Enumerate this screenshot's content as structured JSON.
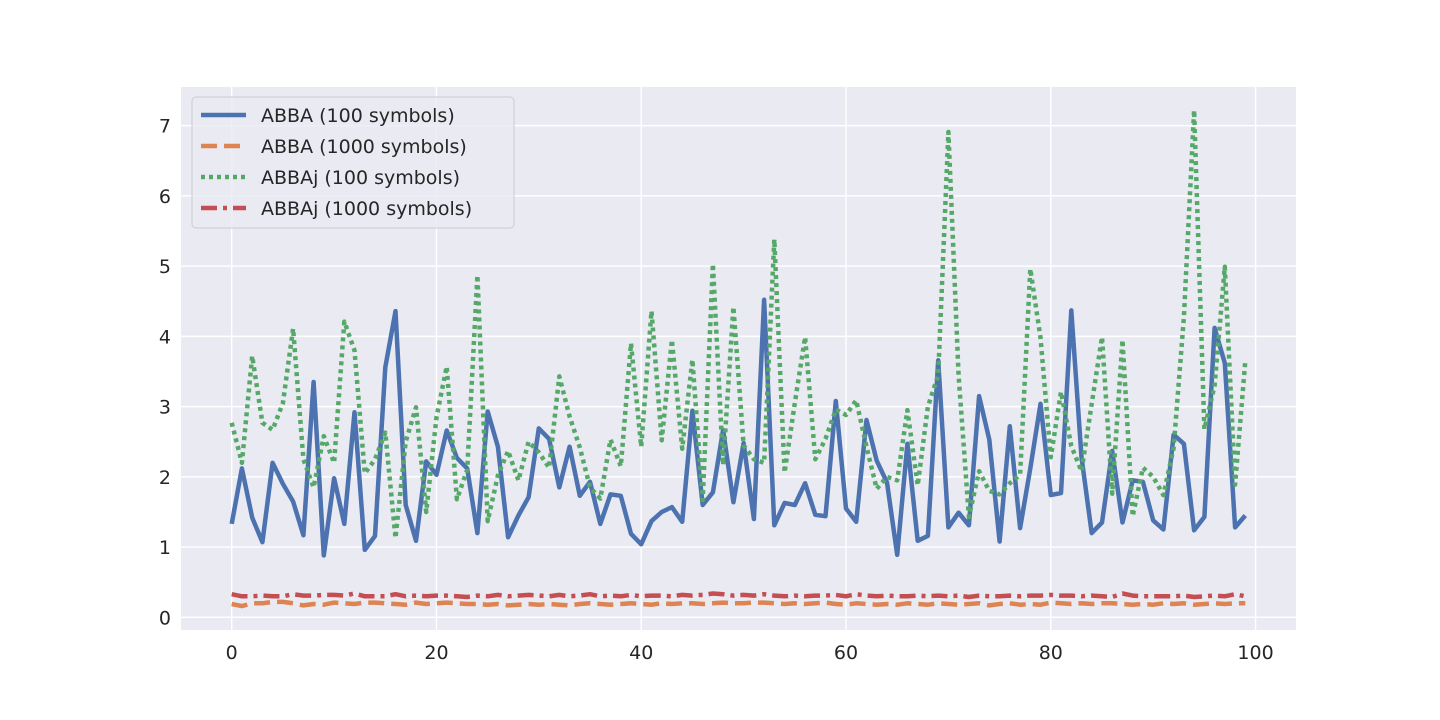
{
  "chart_data": {
    "type": "line",
    "title": "",
    "xlabel": "",
    "ylabel": "",
    "xlim": [
      -4.95,
      103.95
    ],
    "ylim": [
      -0.18,
      7.55
    ],
    "xticks": [
      0,
      20,
      40,
      60,
      80,
      100
    ],
    "yticks": [
      0,
      1,
      2,
      3,
      4,
      5,
      6,
      7
    ],
    "grid": true,
    "legend_position": "upper-left",
    "x": [
      0,
      1,
      2,
      3,
      4,
      5,
      6,
      7,
      8,
      9,
      10,
      11,
      12,
      13,
      14,
      15,
      16,
      17,
      18,
      19,
      20,
      21,
      22,
      23,
      24,
      25,
      26,
      27,
      28,
      29,
      30,
      31,
      32,
      33,
      34,
      35,
      36,
      37,
      38,
      39,
      40,
      41,
      42,
      43,
      44,
      45,
      46,
      47,
      48,
      49,
      50,
      51,
      52,
      53,
      54,
      55,
      56,
      57,
      58,
      59,
      60,
      61,
      62,
      63,
      64,
      65,
      66,
      67,
      68,
      69,
      70,
      71,
      72,
      73,
      74,
      75,
      76,
      77,
      78,
      79,
      80,
      81,
      82,
      83,
      84,
      85,
      86,
      87,
      88,
      89,
      90,
      91,
      92,
      93,
      94,
      95,
      96,
      97,
      98,
      99
    ],
    "series": [
      {
        "name": "ABBA (100 symbols)",
        "color": "#4c72b0",
        "dash": "solid",
        "values": [
          1.33,
          2.12,
          1.42,
          1.07,
          2.2,
          1.9,
          1.65,
          1.17,
          3.35,
          0.88,
          1.98,
          1.33,
          2.92,
          0.96,
          1.16,
          3.56,
          4.36,
          1.6,
          1.09,
          2.22,
          2.03,
          2.66,
          2.27,
          2.12,
          1.2,
          2.93,
          2.43,
          1.14,
          1.45,
          1.71,
          2.69,
          2.54,
          1.85,
          2.43,
          1.73,
          1.93,
          1.33,
          1.75,
          1.73,
          1.19,
          1.04,
          1.37,
          1.5,
          1.57,
          1.36,
          2.94,
          1.6,
          1.78,
          2.67,
          1.64,
          2.48,
          1.4,
          4.52,
          1.31,
          1.63,
          1.6,
          1.91,
          1.46,
          1.44,
          3.08,
          1.55,
          1.36,
          2.81,
          2.23,
          1.92,
          0.89,
          2.47,
          1.09,
          1.16,
          3.66,
          1.28,
          1.49,
          1.31,
          3.15,
          2.53,
          1.08,
          2.72,
          1.27,
          2.12,
          3.04,
          1.74,
          1.77,
          4.37,
          2.28,
          1.2,
          1.35,
          2.37,
          1.35,
          1.95,
          1.93,
          1.38,
          1.25,
          2.6,
          2.47,
          1.24,
          1.43,
          4.12,
          3.62,
          1.28,
          1.45
        ]
      },
      {
        "name": "ABBA (1000 symbols)",
        "color": "#dd8452",
        "dash": "dashed",
        "values": [
          0.19,
          0.16,
          0.2,
          0.2,
          0.22,
          0.22,
          0.2,
          0.17,
          0.19,
          0.18,
          0.21,
          0.2,
          0.19,
          0.21,
          0.21,
          0.2,
          0.19,
          0.18,
          0.21,
          0.19,
          0.2,
          0.21,
          0.2,
          0.19,
          0.19,
          0.18,
          0.19,
          0.17,
          0.18,
          0.19,
          0.18,
          0.19,
          0.18,
          0.17,
          0.19,
          0.2,
          0.19,
          0.18,
          0.19,
          0.2,
          0.19,
          0.18,
          0.2,
          0.19,
          0.2,
          0.2,
          0.19,
          0.2,
          0.21,
          0.2,
          0.2,
          0.21,
          0.21,
          0.2,
          0.19,
          0.2,
          0.19,
          0.2,
          0.21,
          0.19,
          0.18,
          0.2,
          0.19,
          0.18,
          0.19,
          0.18,
          0.2,
          0.19,
          0.18,
          0.2,
          0.19,
          0.18,
          0.19,
          0.2,
          0.17,
          0.19,
          0.2,
          0.18,
          0.19,
          0.18,
          0.21,
          0.2,
          0.19,
          0.2,
          0.19,
          0.2,
          0.2,
          0.19,
          0.18,
          0.19,
          0.18,
          0.2,
          0.19,
          0.2,
          0.18,
          0.19,
          0.2,
          0.19,
          0.2,
          0.2
        ]
      },
      {
        "name": "ABBAj (100 symbols)",
        "color": "#55a868",
        "dash": "dotted",
        "values": [
          2.77,
          2.2,
          3.72,
          2.77,
          2.67,
          3.05,
          4.11,
          2.25,
          1.85,
          2.58,
          2.2,
          4.21,
          3.8,
          2.05,
          2.25,
          2.63,
          1.13,
          2.5,
          2.99,
          1.5,
          2.85,
          3.57,
          1.68,
          2.1,
          4.87,
          1.37,
          2.02,
          2.37,
          1.95,
          2.5,
          2.35,
          2.13,
          3.43,
          2.86,
          2.42,
          1.85,
          1.69,
          2.53,
          2.15,
          3.9,
          2.43,
          4.36,
          2.52,
          3.95,
          2.4,
          3.67,
          1.67,
          5.03,
          2.17,
          4.42,
          2.45,
          2.25,
          2.2,
          5.38,
          2.06,
          3.05,
          3.99,
          2.25,
          2.54,
          2.96,
          2.88,
          3.09,
          2.43,
          1.83,
          2.0,
          1.95,
          2.95,
          1.88,
          3.0,
          3.45,
          6.91,
          3.44,
          1.43,
          2.08,
          1.8,
          1.75,
          1.91,
          2.03,
          4.96,
          3.98,
          2.28,
          3.21,
          2.44,
          2.08,
          3.04,
          3.99,
          1.76,
          3.95,
          1.44,
          2.13,
          2.0,
          1.74,
          2.41,
          4.27,
          7.22,
          2.68,
          3.3,
          4.99,
          1.89,
          3.65
        ]
      },
      {
        "name": "ABBAj (1000 symbols)",
        "color": "#c44e52",
        "dash": "dashdot",
        "values": [
          0.33,
          0.3,
          0.3,
          0.31,
          0.3,
          0.3,
          0.33,
          0.31,
          0.31,
          0.32,
          0.32,
          0.31,
          0.34,
          0.3,
          0.3,
          0.3,
          0.33,
          0.3,
          0.31,
          0.3,
          0.31,
          0.31,
          0.3,
          0.29,
          0.31,
          0.3,
          0.32,
          0.3,
          0.31,
          0.32,
          0.31,
          0.3,
          0.32,
          0.3,
          0.31,
          0.33,
          0.3,
          0.31,
          0.3,
          0.32,
          0.3,
          0.31,
          0.31,
          0.3,
          0.32,
          0.31,
          0.32,
          0.34,
          0.33,
          0.31,
          0.32,
          0.31,
          0.33,
          0.31,
          0.3,
          0.31,
          0.3,
          0.31,
          0.31,
          0.32,
          0.3,
          0.33,
          0.31,
          0.3,
          0.31,
          0.3,
          0.3,
          0.31,
          0.3,
          0.31,
          0.3,
          0.31,
          0.29,
          0.31,
          0.3,
          0.3,
          0.31,
          0.3,
          0.31,
          0.31,
          0.32,
          0.31,
          0.31,
          0.3,
          0.31,
          0.3,
          0.29,
          0.34,
          0.31,
          0.3,
          0.3,
          0.3,
          0.3,
          0.31,
          0.29,
          0.3,
          0.31,
          0.3,
          0.33,
          0.3
        ]
      }
    ]
  }
}
